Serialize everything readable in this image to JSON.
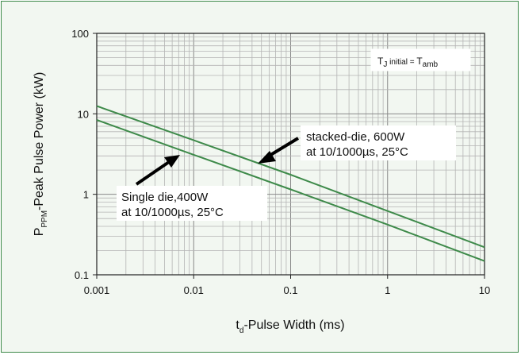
{
  "chart_data": {
    "type": "line",
    "x_scale": "log",
    "y_scale": "log",
    "xlim": [
      0.001,
      10
    ],
    "ylim": [
      0.1,
      100
    ],
    "grid": true,
    "x_ticks": [
      "0.001",
      "0.01",
      "0.1",
      "1",
      "10"
    ],
    "y_ticks": [
      "0.1",
      "1",
      "10",
      "100"
    ],
    "xlabel": {
      "main": "t",
      "sub": "d",
      "rest": "-Pulse Width (ms)"
    },
    "ylabel": {
      "main": "P",
      "sub": "PPM",
      "rest": "-Peak Pulse Power (kW)"
    },
    "series": [
      {
        "x": [
          0.001,
          0.01,
          0.1,
          1,
          10
        ],
        "y": [
          12.5,
          4.7,
          1.75,
          0.62,
          0.22
        ]
      },
      {
        "x": [
          0.001,
          0.01,
          0.1,
          1,
          10
        ],
        "y": [
          8.4,
          3.1,
          1.15,
          0.42,
          0.148
        ]
      }
    ],
    "note": {
      "t": "T",
      "j": "J",
      "mid": " initial = ",
      "t2": "T",
      "amb": "amb"
    },
    "annotations": [
      {
        "line1": "stacked-die, 600W",
        "line2": "at 10/1000µs, 25°C",
        "points_to_series": 0
      },
      {
        "line1": "Single die,400W",
        "line2": "at 10/1000µs, 25°C",
        "points_to_series": 1
      }
    ]
  },
  "colors": {
    "series": "#3e8a4a",
    "grid": "#b4b4b4",
    "frame": "#3e8a4a",
    "background": "#f2f7f1"
  }
}
